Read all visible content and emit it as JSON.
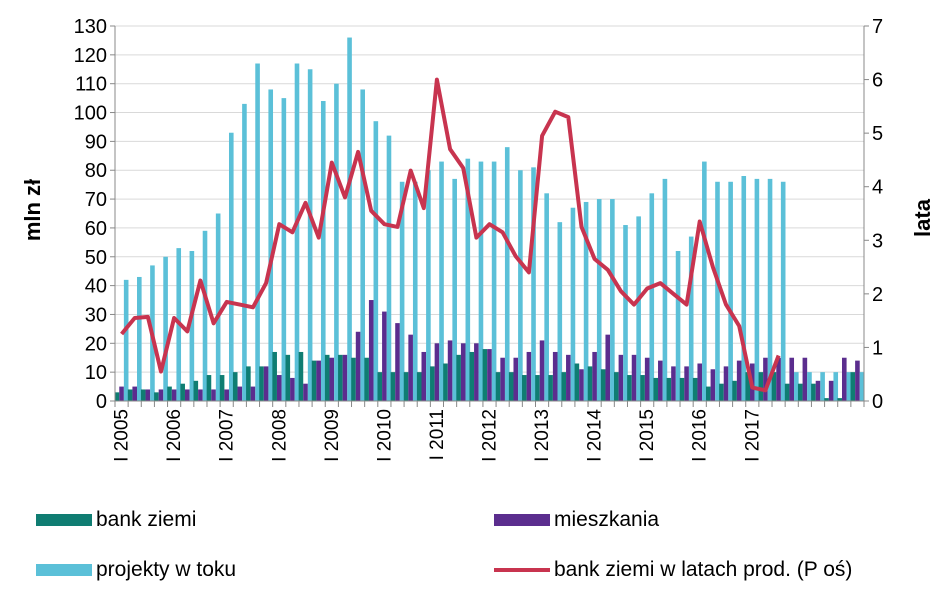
{
  "chart_data": {
    "type": "bar",
    "title": "",
    "y_left": {
      "label": "mln zł",
      "ticks": [
        "0",
        "10",
        "20",
        "30",
        "40",
        "50",
        "60",
        "70",
        "80",
        "90",
        "100",
        "110",
        "120",
        "130"
      ],
      "range": [
        0,
        130
      ]
    },
    "y_right": {
      "label": "lata",
      "ticks": [
        "0",
        "1",
        "2",
        "3",
        "4",
        "5",
        "6",
        "7"
      ],
      "range": [
        0,
        7
      ]
    },
    "x_ticks": [
      "I 2005",
      "I 2006",
      "I 2007",
      "I 2008",
      "I 2009",
      "I 2010",
      "I 2011",
      "I 2012",
      "I 2013",
      "I 2014",
      "I 2015",
      "I 2016",
      "I 2017"
    ],
    "x_tick_every": 4,
    "grid": true,
    "legend_position": "bottom",
    "series": [
      {
        "name": "bank ziemi",
        "kind": "bar",
        "color": "#0f7d72",
        "values": [
          3,
          4,
          4,
          3,
          5,
          6,
          7,
          9,
          9,
          10,
          12,
          12,
          17,
          16,
          17,
          14,
          16,
          16,
          15,
          15,
          10,
          10,
          10,
          10,
          12,
          13,
          16,
          17,
          18,
          10,
          10,
          9,
          9,
          9,
          10,
          13,
          12,
          11,
          10,
          9,
          9,
          8,
          8,
          8,
          8,
          5,
          6,
          7,
          10,
          10,
          10,
          6,
          6,
          6,
          1,
          1,
          10
        ]
      },
      {
        "name": "mieszkania",
        "kind": "bar",
        "color": "#5b2d8e",
        "values": [
          5,
          5,
          4,
          4,
          4,
          4,
          4,
          4,
          4,
          5,
          5,
          12,
          9,
          8,
          6,
          14,
          15,
          16,
          24,
          35,
          31,
          27,
          23,
          17,
          20,
          21,
          20,
          20,
          18,
          15,
          15,
          17,
          21,
          17,
          16,
          11,
          17,
          23,
          16,
          16,
          15,
          14,
          12,
          12,
          13,
          11,
          12,
          14,
          13,
          15,
          15,
          15,
          15,
          7,
          7,
          15,
          14
        ]
      },
      {
        "name": "projekty w toku",
        "kind": "bar",
        "color": "#5bc0d8",
        "values": [
          42,
          43,
          47,
          50,
          53,
          52,
          59,
          65,
          93,
          103,
          117,
          108,
          105,
          117,
          115,
          104,
          110,
          126,
          108,
          97,
          92,
          76,
          76,
          80,
          83,
          77,
          84,
          83,
          83,
          88,
          80,
          81,
          72,
          62,
          67,
          69,
          70,
          70,
          61,
          64,
          72,
          77,
          52,
          57,
          83,
          76,
          76,
          78,
          77,
          77,
          76,
          10,
          10,
          10,
          10,
          10,
          10
        ]
      },
      {
        "name": "bank ziemi w latach prod. (P oś)",
        "kind": "line",
        "axis": "right",
        "color": "#c8344f",
        "values": [
          1.25,
          1.55,
          1.57,
          0.55,
          1.55,
          1.3,
          2.25,
          1.45,
          1.85,
          1.8,
          1.75,
          2.2,
          3.3,
          3.15,
          3.7,
          3.05,
          4.45,
          3.8,
          4.65,
          3.55,
          3.3,
          3.25,
          4.3,
          3.6,
          6.0,
          4.7,
          4.35,
          3.05,
          3.3,
          3.15,
          2.7,
          2.4,
          4.95,
          5.4,
          5.3,
          3.25,
          2.65,
          2.45,
          2.05,
          1.8,
          2.1,
          2.2,
          2.0,
          1.8,
          3.35,
          2.5,
          1.8,
          1.4,
          0.25,
          0.2,
          0.85
        ]
      }
    ]
  }
}
